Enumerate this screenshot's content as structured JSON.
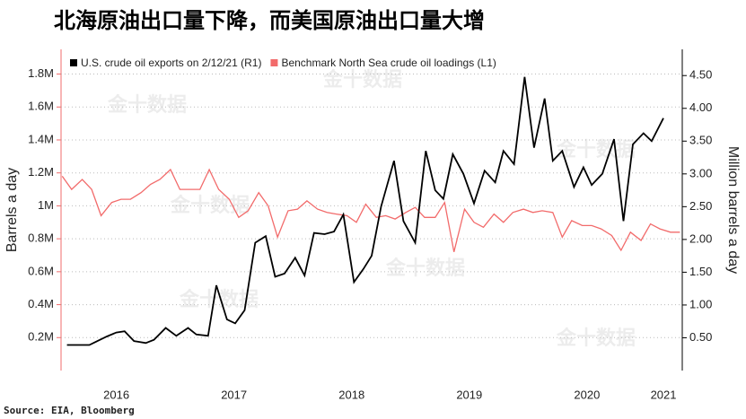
{
  "chart_data": {
    "type": "line",
    "title": "北海原油出口量下降，而美国原油出口量大增",
    "source": "Source: EIA, Bloomberg",
    "watermark": "金十数据",
    "ylabel": "Barrels a day",
    "y2label": "Million barrels a day",
    "xlim": [
      2016.03,
      2021.31
    ],
    "xticks": [
      {
        "value": 2016.5,
        "label": "2016"
      },
      {
        "value": 2017.5,
        "label": "2017"
      },
      {
        "value": 2018.5,
        "label": "2018"
      },
      {
        "value": 2019.5,
        "label": "2019"
      },
      {
        "value": 2020.5,
        "label": "2020"
      },
      {
        "value": 2021.15,
        "label": "2021"
      }
    ],
    "ylim": [
      0,
      1950000
    ],
    "yticks": [
      {
        "value": 200000,
        "label": "0.2M"
      },
      {
        "value": 400000,
        "label": "0.4M"
      },
      {
        "value": 600000,
        "label": "0.6M"
      },
      {
        "value": 800000,
        "label": "0.8M"
      },
      {
        "value": 1000000,
        "label": "1M"
      },
      {
        "value": 1200000,
        "label": "1.2M"
      },
      {
        "value": 1400000,
        "label": "1.4M"
      },
      {
        "value": 1600000,
        "label": "1.6M"
      },
      {
        "value": 1800000,
        "label": "1.8M"
      }
    ],
    "y2lim": [
      0,
      4.9
    ],
    "y2ticks": [
      {
        "value": 0.5,
        "label": "0.50"
      },
      {
        "value": 1,
        "label": "1.00"
      },
      {
        "value": 1.5,
        "label": "1.50"
      },
      {
        "value": 2,
        "label": "2.00"
      },
      {
        "value": 2.5,
        "label": "2.50"
      },
      {
        "value": 3,
        "label": "3.00"
      },
      {
        "value": 3.5,
        "label": "3.50"
      },
      {
        "value": 4,
        "label": "4.00"
      },
      {
        "value": 4.5,
        "label": "4.50"
      }
    ],
    "grid": true,
    "legend": "top-left",
    "series": [
      {
        "name": "U.S. crude oil exports on 2/12/21 (R1)",
        "color": "#000000",
        "axis": "y2",
        "x": [
          2016.08,
          2016.17,
          2016.27,
          2016.34,
          2016.42,
          2016.5,
          2016.57,
          2016.65,
          2016.75,
          2016.82,
          2016.92,
          2017.01,
          2017.11,
          2017.18,
          2017.28,
          2017.35,
          2017.44,
          2017.51,
          2017.59,
          2017.68,
          2017.77,
          2017.85,
          2017.93,
          2018.02,
          2018.1,
          2018.18,
          2018.27,
          2018.35,
          2018.43,
          2018.52,
          2018.6,
          2018.67,
          2018.75,
          2018.86,
          2018.94,
          2019.04,
          2019.13,
          2019.21,
          2019.28,
          2019.36,
          2019.45,
          2019.54,
          2019.63,
          2019.72,
          2019.79,
          2019.88,
          2019.97,
          2020.05,
          2020.14,
          2020.21,
          2020.29,
          2020.39,
          2020.47,
          2020.54,
          2020.63,
          2020.73,
          2020.81,
          2020.89,
          2020.98,
          2021.05,
          2021.15
        ],
        "values": [
          0.39,
          0.39,
          0.39,
          0.45,
          0.52,
          0.58,
          0.6,
          0.45,
          0.42,
          0.47,
          0.65,
          0.53,
          0.65,
          0.55,
          0.53,
          1.3,
          0.78,
          0.72,
          0.92,
          1.95,
          2.05,
          1.43,
          1.48,
          1.72,
          1.45,
          2.1,
          2.08,
          2.12,
          2.38,
          1.35,
          1.55,
          1.75,
          2.5,
          3.2,
          2.28,
          1.95,
          3.35,
          2.75,
          2.62,
          3.3,
          3.0,
          2.55,
          3.05,
          2.87,
          3.35,
          3.15,
          4.48,
          3.4,
          4.15,
          3.2,
          3.35,
          2.8,
          3.1,
          2.83,
          3.0,
          3.53,
          2.28,
          3.45,
          3.62,
          3.5,
          3.85
        ]
      },
      {
        "name": "Benchmark North Sea crude oil loadings (L1)",
        "color": "#f26b6b",
        "axis": "y",
        "x": [
          2016.04,
          2016.12,
          2016.21,
          2016.29,
          2016.37,
          2016.46,
          2016.54,
          2016.62,
          2016.71,
          2016.79,
          2016.87,
          2016.96,
          2017.04,
          2017.12,
          2017.21,
          2017.29,
          2017.37,
          2017.46,
          2017.54,
          2017.62,
          2017.71,
          2017.79,
          2017.87,
          2017.96,
          2018.04,
          2018.12,
          2018.21,
          2018.29,
          2018.37,
          2018.46,
          2018.54,
          2018.62,
          2018.71,
          2018.79,
          2018.87,
          2018.96,
          2019.04,
          2019.12,
          2019.21,
          2019.29,
          2019.37,
          2019.46,
          2019.54,
          2019.62,
          2019.71,
          2019.79,
          2019.87,
          2019.96,
          2020.04,
          2020.12,
          2020.21,
          2020.29,
          2020.37,
          2020.46,
          2020.54,
          2020.62,
          2020.71,
          2020.79,
          2020.87,
          2020.96,
          2021.04,
          2021.12,
          2021.21,
          2021.29
        ],
        "values": [
          1180000,
          1100000,
          1160000,
          1100000,
          940000,
          1020000,
          1040000,
          1040000,
          1080000,
          1130000,
          1160000,
          1220000,
          1100000,
          1100000,
          1100000,
          1220000,
          1100000,
          1040000,
          930000,
          970000,
          1080000,
          1000000,
          810000,
          970000,
          980000,
          1030000,
          980000,
          960000,
          950000,
          940000,
          900000,
          1010000,
          930000,
          940000,
          920000,
          960000,
          990000,
          930000,
          930000,
          1020000,
          720000,
          980000,
          900000,
          870000,
          950000,
          900000,
          960000,
          980000,
          960000,
          970000,
          960000,
          810000,
          910000,
          880000,
          880000,
          860000,
          820000,
          730000,
          840000,
          790000,
          890000,
          860000,
          840000,
          840000
        ]
      }
    ]
  }
}
